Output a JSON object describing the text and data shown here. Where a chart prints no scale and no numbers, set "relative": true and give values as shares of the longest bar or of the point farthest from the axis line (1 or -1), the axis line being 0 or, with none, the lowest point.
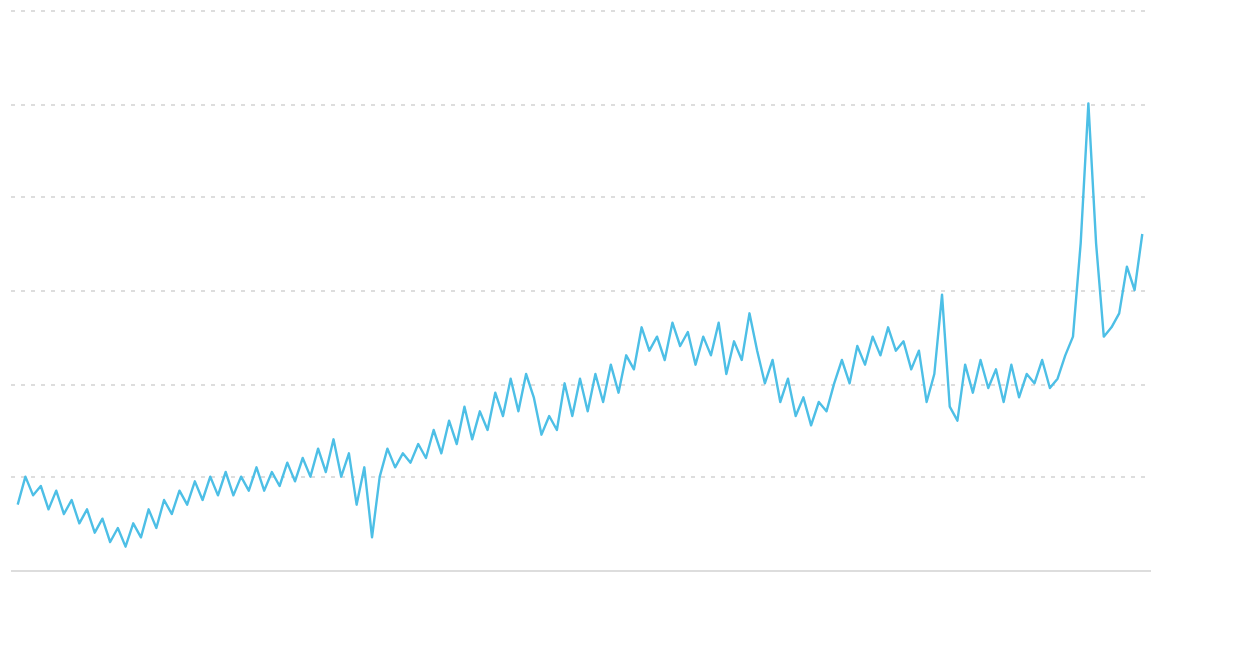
{
  "chart_data": {
    "type": "line",
    "relative": true,
    "grid": "y",
    "line_style": "solid",
    "marker": "none",
    "series": [
      {
        "color": "#4dbfe6",
        "values": [
          0.14,
          0.2,
          0.16,
          0.18,
          0.13,
          0.17,
          0.12,
          0.15,
          0.1,
          0.13,
          0.08,
          0.11,
          0.06,
          0.09,
          0.05,
          0.1,
          0.07,
          0.13,
          0.09,
          0.15,
          0.12,
          0.17,
          0.14,
          0.19,
          0.15,
          0.2,
          0.16,
          0.21,
          0.16,
          0.2,
          0.17,
          0.22,
          0.17,
          0.21,
          0.18,
          0.23,
          0.19,
          0.24,
          0.2,
          0.26,
          0.21,
          0.28,
          0.2,
          0.25,
          0.14,
          0.22,
          0.07,
          0.2,
          0.26,
          0.22,
          0.25,
          0.23,
          0.27,
          0.24,
          0.3,
          0.25,
          0.32,
          0.27,
          0.35,
          0.28,
          0.34,
          0.3,
          0.38,
          0.33,
          0.41,
          0.34,
          0.42,
          0.37,
          0.29,
          0.33,
          0.3,
          0.4,
          0.33,
          0.41,
          0.34,
          0.42,
          0.36,
          0.44,
          0.38,
          0.46,
          0.43,
          0.52,
          0.47,
          0.5,
          0.45,
          0.53,
          0.48,
          0.51,
          0.44,
          0.5,
          0.46,
          0.53,
          0.42,
          0.49,
          0.45,
          0.55,
          0.47,
          0.4,
          0.45,
          0.36,
          0.41,
          0.33,
          0.37,
          0.31,
          0.36,
          0.34,
          0.4,
          0.45,
          0.4,
          0.48,
          0.44,
          0.5,
          0.46,
          0.52,
          0.47,
          0.49,
          0.43,
          0.47,
          0.36,
          0.42,
          0.59,
          0.35,
          0.32,
          0.44,
          0.38,
          0.45,
          0.39,
          0.43,
          0.36,
          0.44,
          0.37,
          0.42,
          0.4,
          0.45,
          0.39,
          0.41,
          0.46,
          0.5,
          0.7,
          1.0,
          0.7,
          0.5,
          0.52,
          0.55,
          0.65,
          0.6,
          0.72
        ]
      }
    ]
  }
}
